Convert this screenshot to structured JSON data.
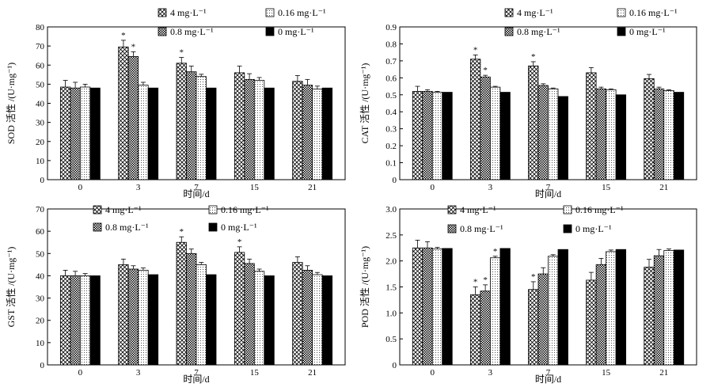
{
  "chart_data": [
    {
      "type": "bar",
      "panel": "SOD",
      "categories": [
        "0",
        "3",
        "7",
        "15",
        "21"
      ],
      "xlabel": "时间/d",
      "ylabel": "SOD 活性 /(U·mg⁻¹)",
      "ylim": [
        0,
        80
      ],
      "yticks": [
        "0",
        "10",
        "20",
        "30",
        "40",
        "50",
        "60",
        "70",
        "80"
      ],
      "series": [
        {
          "name": "4 mg·L⁻¹",
          "values": [
            48.5,
            69.5,
            61,
            56,
            51.5
          ],
          "errors": [
            3.5,
            3.5,
            3,
            3.5,
            3
          ],
          "stars": [
            "",
            "*",
            "*",
            "",
            ""
          ]
        },
        {
          "name": "0.8 mg·L⁻¹",
          "values": [
            48,
            64.5,
            56.5,
            52.5,
            49.5
          ],
          "errors": [
            3,
            2.5,
            3,
            3,
            3
          ],
          "stars": [
            "",
            "*",
            "",
            "",
            ""
          ]
        },
        {
          "name": "0.16 mg·L⁻¹",
          "values": [
            48.5,
            49.5,
            54,
            52,
            47.5
          ],
          "errors": [
            1.5,
            1.5,
            1.2,
            1.5,
            1.5
          ],
          "stars": [
            "",
            "",
            "",
            "",
            ""
          ]
        },
        {
          "name": "0 mg·L⁻¹",
          "values": [
            48,
            48,
            48,
            48,
            48
          ],
          "errors": [
            0,
            0,
            0,
            0,
            0
          ],
          "stars": [
            "",
            "",
            "",
            "",
            ""
          ]
        }
      ]
    },
    {
      "type": "bar",
      "panel": "CAT",
      "categories": [
        "0",
        "3",
        "7",
        "15",
        "21"
      ],
      "xlabel": "时间/d",
      "ylabel": "CAT 活性 /(U·mg⁻¹)",
      "ylim": [
        0,
        0.9
      ],
      "yticks": [
        "0",
        "0.1",
        "0.2",
        "0.3",
        "0.4",
        "0.5",
        "0.6",
        "0.7",
        "0.8",
        "0.9"
      ],
      "series": [
        {
          "name": "4 mg·L⁻¹",
          "values": [
            0.52,
            0.71,
            0.67,
            0.63,
            0.595
          ],
          "errors": [
            0.03,
            0.025,
            0.025,
            0.03,
            0.025
          ],
          "stars": [
            "",
            "*",
            "*",
            "",
            ""
          ]
        },
        {
          "name": "0.8 mg·L⁻¹",
          "values": [
            0.52,
            0.605,
            0.555,
            0.535,
            0.535
          ],
          "errors": [
            0.01,
            0.01,
            0.01,
            0.01,
            0.01
          ],
          "stars": [
            "",
            "*",
            "",
            "",
            ""
          ]
        },
        {
          "name": "0.16 mg·L⁻¹",
          "values": [
            0.515,
            0.545,
            0.535,
            0.53,
            0.525
          ],
          "errors": [
            0.005,
            0.005,
            0.005,
            0.005,
            0.005
          ],
          "stars": [
            "",
            "",
            "",
            "",
            ""
          ]
        },
        {
          "name": "0 mg·L⁻¹",
          "values": [
            0.515,
            0.515,
            0.49,
            0.5,
            0.515
          ],
          "errors": [
            0,
            0,
            0,
            0,
            0
          ],
          "stars": [
            "",
            "",
            "",
            "",
            ""
          ]
        }
      ]
    },
    {
      "type": "bar",
      "panel": "GST",
      "categories": [
        "0",
        "3",
        "7",
        "15",
        "21"
      ],
      "xlabel": "时间/d",
      "ylabel": "GST 活性 /(U·mg⁻¹)",
      "ylim": [
        0,
        70
      ],
      "yticks": [
        "0",
        "10",
        "20",
        "30",
        "40",
        "50",
        "60",
        "70"
      ],
      "series": [
        {
          "name": "4 mg·L⁻¹",
          "values": [
            40,
            45,
            55,
            50.5,
            46
          ],
          "errors": [
            2.5,
            2.5,
            2.5,
            2.5,
            2.5
          ],
          "stars": [
            "",
            "",
            "*",
            "*",
            ""
          ]
        },
        {
          "name": "0.8 mg·L⁻¹",
          "values": [
            40,
            43,
            50,
            45.5,
            42.5
          ],
          "errors": [
            2,
            1.5,
            2,
            2,
            2
          ],
          "stars": [
            "",
            "",
            "",
            "",
            ""
          ]
        },
        {
          "name": "0.16 mg·L⁻¹",
          "values": [
            40,
            42.5,
            45,
            42,
            40.5
          ],
          "errors": [
            1,
            1,
            1,
            1,
            1
          ],
          "stars": [
            "",
            "",
            "",
            "",
            ""
          ]
        },
        {
          "name": "0 mg·L⁻¹",
          "values": [
            40,
            40.5,
            40.5,
            40,
            40
          ],
          "errors": [
            0,
            0,
            0,
            0,
            0
          ],
          "stars": [
            "",
            "",
            "",
            "",
            ""
          ]
        }
      ]
    },
    {
      "type": "bar",
      "panel": "POD",
      "categories": [
        "0",
        "3",
        "7",
        "15",
        "21"
      ],
      "xlabel": "时间/d",
      "ylabel": "POD 活性 /(U·mg⁻¹)",
      "ylim": [
        0,
        3.0
      ],
      "yticks": [
        "0",
        "0.5",
        "1.0",
        "1.5",
        "2.0",
        "2.5",
        "3.0"
      ],
      "series": [
        {
          "name": "4 mg·L⁻¹",
          "values": [
            2.25,
            1.35,
            1.45,
            1.63,
            1.88
          ],
          "errors": [
            0.15,
            0.15,
            0.15,
            0.15,
            0.15
          ],
          "stars": [
            "",
            "*",
            "*",
            "",
            ""
          ]
        },
        {
          "name": "0.8 mg·L⁻¹",
          "values": [
            2.25,
            1.42,
            1.75,
            1.93,
            2.1
          ],
          "errors": [
            0.12,
            0.12,
            0.12,
            0.12,
            0.12
          ],
          "stars": [
            "",
            "*",
            "",
            "",
            ""
          ]
        },
        {
          "name": "0.16 mg·L⁻¹",
          "values": [
            2.23,
            2.06,
            2.09,
            2.18,
            2.2
          ],
          "errors": [
            0.03,
            0.03,
            0.03,
            0.03,
            0.03
          ],
          "stars": [
            "",
            "*",
            "",
            "",
            ""
          ]
        },
        {
          "name": "0 mg·L⁻¹",
          "values": [
            2.24,
            2.24,
            2.22,
            2.22,
            2.21
          ],
          "errors": [
            0,
            0,
            0,
            0,
            0
          ],
          "stars": [
            "",
            "",
            "",
            "",
            ""
          ]
        }
      ]
    }
  ]
}
